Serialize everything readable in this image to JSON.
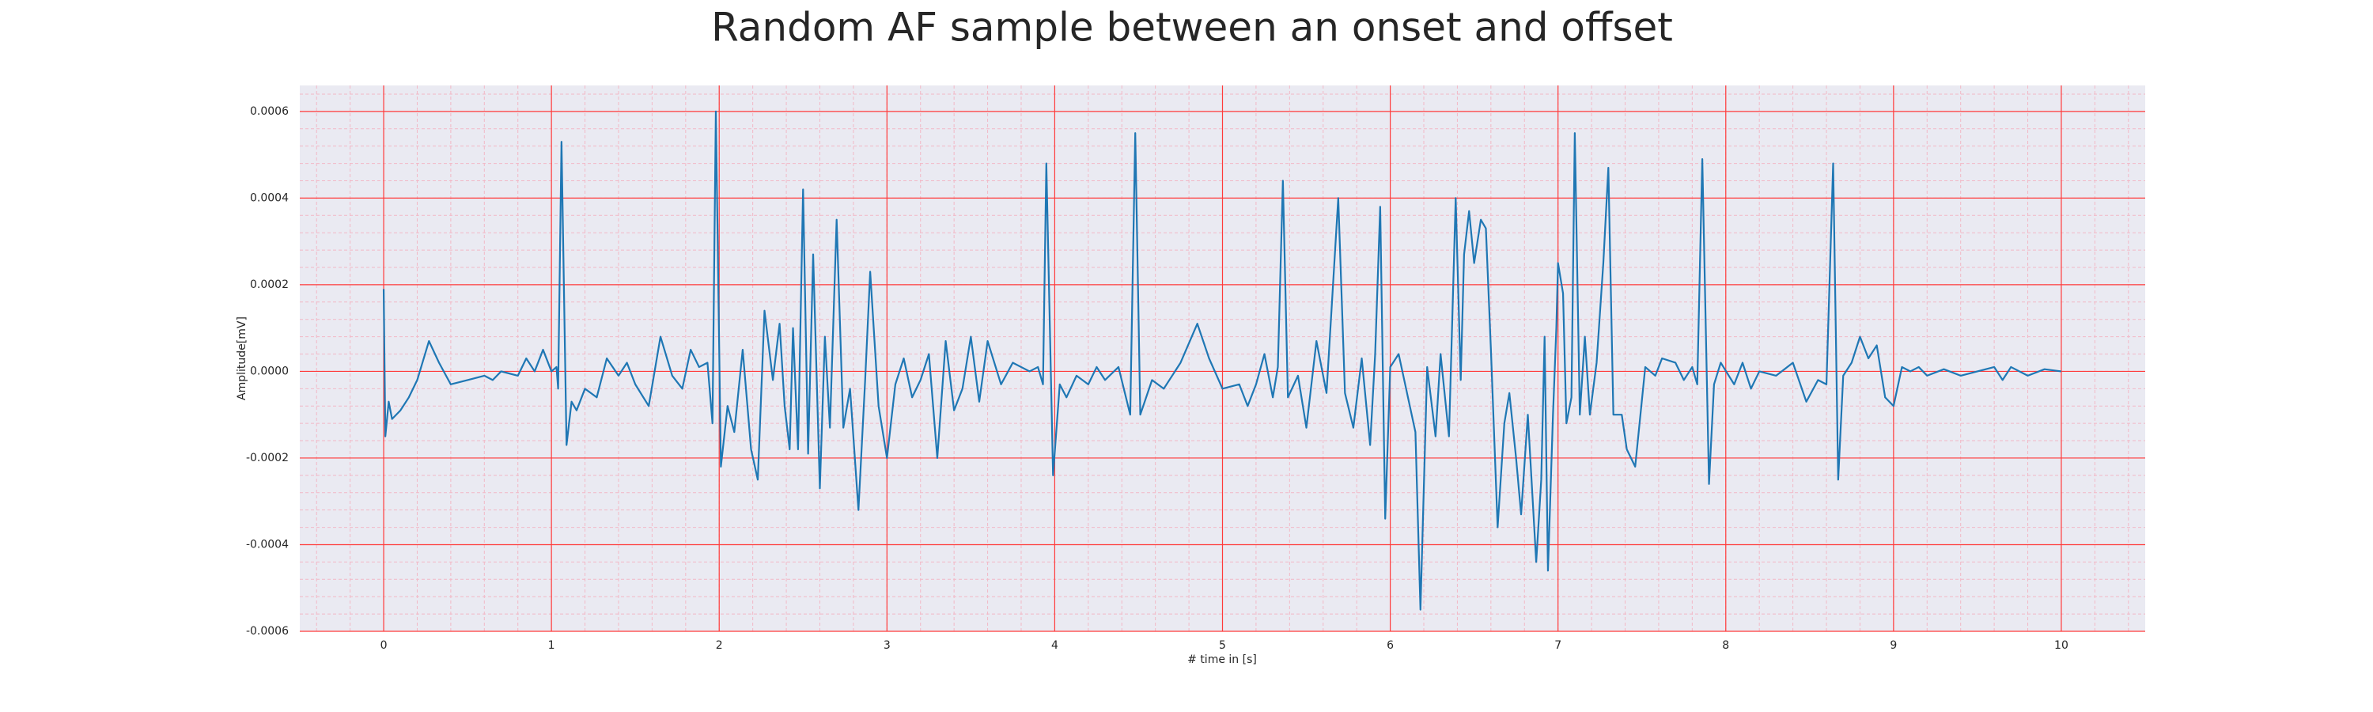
{
  "chart_data": {
    "type": "line",
    "title": "Random AF sample between an onset and offset",
    "x_label": "# time in [s]",
    "y_label": "Amplitude[mV]",
    "xlim": [
      -0.5,
      10.5
    ],
    "xticks": [
      0,
      1,
      2,
      3,
      4,
      5,
      6,
      7,
      8,
      9,
      10
    ],
    "ylim": [
      -0.0006,
      0.00066
    ],
    "yticks": [
      -0.0006,
      -0.0004,
      -0.0002,
      {
        "value": 0,
        "label": "0.0000"
      },
      0.0002,
      0.0004,
      0.0006
    ],
    "grid": true,
    "minor_grid": true,
    "grid_color": "#ff3b3b",
    "minor_grid_color": "#f2b8c6",
    "background": "#eaeaf2",
    "series": [
      {
        "color": "#1f77b4",
        "x": [
          0,
          0.01,
          0.03,
          0.05,
          0.1,
          0.15,
          0.2,
          0.27,
          0.33,
          0.4,
          0.5,
          0.6,
          0.65,
          0.7,
          0.8,
          0.85,
          0.9,
          0.95,
          1.0,
          1.03,
          1.04,
          1.06,
          1.09,
          1.12,
          1.15,
          1.2,
          1.27,
          1.33,
          1.4,
          1.45,
          1.5,
          1.58,
          1.65,
          1.72,
          1.78,
          1.83,
          1.88,
          1.93,
          1.96,
          1.98,
          2.01,
          2.05,
          2.09,
          2.14,
          2.19,
          2.23,
          2.27,
          2.32,
          2.36,
          2.39,
          2.42,
          2.44,
          2.47,
          2.5,
          2.53,
          2.56,
          2.6,
          2.63,
          2.66,
          2.7,
          2.74,
          2.78,
          2.83,
          2.87,
          2.9,
          2.95,
          3.0,
          3.05,
          3.1,
          3.15,
          3.2,
          3.25,
          3.3,
          3.35,
          3.4,
          3.45,
          3.5,
          3.55,
          3.6,
          3.68,
          3.75,
          3.85,
          3.9,
          3.93,
          3.95,
          3.99,
          4.03,
          4.07,
          4.13,
          4.2,
          4.25,
          4.3,
          4.38,
          4.45,
          4.48,
          4.51,
          4.58,
          4.65,
          4.75,
          4.85,
          4.92,
          5.0,
          5.1,
          5.15,
          5.2,
          5.25,
          5.3,
          5.33,
          5.36,
          5.39,
          5.45,
          5.5,
          5.56,
          5.62,
          5.69,
          5.73,
          5.78,
          5.83,
          5.88,
          5.91,
          5.94,
          5.97,
          6.0,
          6.05,
          6.1,
          6.15,
          6.18,
          6.22,
          6.27,
          6.3,
          6.35,
          6.39,
          6.42,
          6.44,
          6.47,
          6.5,
          6.54,
          6.57,
          6.6,
          6.64,
          6.68,
          6.71,
          6.75,
          6.78,
          6.82,
          6.87,
          6.9,
          6.92,
          6.94,
          6.97,
          6.99,
          7.0,
          7.03,
          7.05,
          7.08,
          7.1,
          7.13,
          7.16,
          7.19,
          7.23,
          7.27,
          7.3,
          7.33,
          7.38,
          7.41,
          7.46,
          7.52,
          7.58,
          7.62,
          7.7,
          7.75,
          7.8,
          7.83,
          7.86,
          7.9,
          7.93,
          7.97,
          8.05,
          8.1,
          8.15,
          8.2,
          8.3,
          8.4,
          8.48,
          8.55,
          8.6,
          8.64,
          8.67,
          8.7,
          8.75,
          8.8,
          8.85,
          8.9,
          8.95,
          9.0,
          9.05,
          9.1,
          9.15,
          9.2,
          9.3,
          9.4,
          9.5,
          9.6,
          9.65,
          9.7,
          9.8,
          9.9,
          10.0
        ],
        "values": [
          0.00019,
          -0.00015,
          -7e-05,
          -0.00011,
          -9e-05,
          -6e-05,
          -2e-05,
          7e-05,
          2e-05,
          -3e-05,
          -2e-05,
          -1e-05,
          -2e-05,
          0,
          -1e-05,
          3e-05,
          0,
          5e-05,
          0,
          1e-05,
          -4e-05,
          0.00053,
          -0.00017,
          -7e-05,
          -9e-05,
          -4e-05,
          -6e-05,
          3e-05,
          -1e-05,
          2e-05,
          -3e-05,
          -8e-05,
          8e-05,
          -1e-05,
          -4e-05,
          5e-05,
          1e-05,
          2e-05,
          -0.00012,
          0.0006,
          -0.00022,
          -8e-05,
          -0.00014,
          5e-05,
          -0.00018,
          -0.00025,
          0.00014,
          -2e-05,
          0.00011,
          -8e-05,
          -0.00018,
          0.0001,
          -0.00018,
          0.00042,
          -0.00019,
          0.00027,
          -0.00027,
          8e-05,
          -0.00013,
          0.00035,
          -0.00013,
          -4e-05,
          -0.00032,
          -2e-05,
          0.00023,
          -8e-05,
          -0.0002,
          -3e-05,
          3e-05,
          -6e-05,
          -2e-05,
          4e-05,
          -0.0002,
          7e-05,
          -9e-05,
          -4e-05,
          8e-05,
          -7e-05,
          7e-05,
          -3e-05,
          2e-05,
          0,
          1e-05,
          -3e-05,
          0.00048,
          -0.00024,
          -3e-05,
          -6e-05,
          -1e-05,
          -3e-05,
          1e-05,
          -2e-05,
          1e-05,
          -0.0001,
          0.00055,
          -0.0001,
          -2e-05,
          -4e-05,
          2e-05,
          0.00011,
          3e-05,
          -4e-05,
          -3e-05,
          -8e-05,
          -3e-05,
          4e-05,
          -6e-05,
          1e-05,
          0.00044,
          -6e-05,
          -1e-05,
          -0.00013,
          7e-05,
          -5e-05,
          0.0004,
          -5e-05,
          -0.00013,
          3e-05,
          -0.00017,
          4e-05,
          0.00038,
          -0.00034,
          1e-05,
          4e-05,
          -5e-05,
          -0.00014,
          -0.00055,
          1e-05,
          -0.00015,
          4e-05,
          -0.00015,
          0.0004,
          -2e-05,
          0.00027,
          0.00037,
          0.00025,
          0.00035,
          0.00033,
          5e-05,
          -0.00036,
          -0.00012,
          -5e-05,
          -0.0002,
          -0.00033,
          -0.0001,
          -0.00044,
          -0.00025,
          8e-05,
          -0.00046,
          -0.0001,
          0.0001,
          0.00025,
          0.00018,
          -0.00012,
          -6e-05,
          0.00055,
          -0.0001,
          8e-05,
          -0.0001,
          2e-05,
          0.00025,
          0.00047,
          -0.0001,
          -0.0001,
          -0.00018,
          -0.00022,
          1e-05,
          -1e-05,
          3e-05,
          2e-05,
          -2e-05,
          1e-05,
          -3e-05,
          0.00049,
          -0.00026,
          -3e-05,
          2e-05,
          -3e-05,
          2e-05,
          -4e-05,
          0,
          -1e-05,
          2e-05,
          -7e-05,
          -2e-05,
          -3e-05,
          0.00048,
          -0.00025,
          -1e-05,
          2e-05,
          8e-05,
          3e-05,
          6e-05,
          -6e-05,
          -8e-05,
          1e-05,
          0,
          1e-05,
          -1e-05,
          5e-06,
          -1e-05,
          0,
          1e-05,
          -2e-05,
          1e-05,
          -1e-05,
          5e-06,
          0
        ]
      }
    ]
  }
}
